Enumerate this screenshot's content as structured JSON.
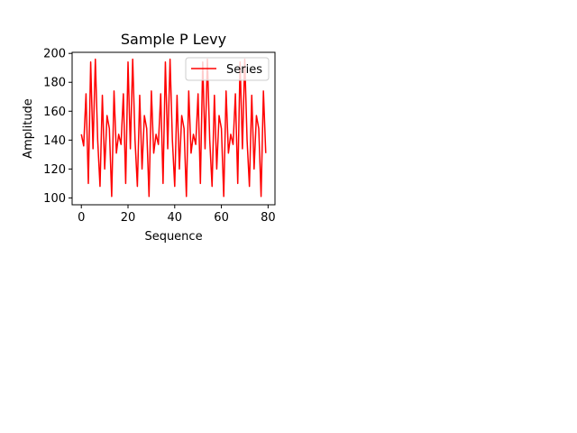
{
  "chart_data": {
    "type": "line",
    "title": "Sample P Levy",
    "xlabel": "Sequence",
    "ylabel": "Amplitude",
    "xlim": [
      -3.95,
      82.95
    ],
    "ylim": [
      95.25,
      200.75
    ],
    "x_ticks": [
      0,
      20,
      40,
      60,
      80
    ],
    "y_ticks": [
      100,
      120,
      140,
      160,
      180,
      200
    ],
    "legend_position": "upper right",
    "grid": false,
    "series": [
      {
        "name": "Series",
        "color": "#ff0000",
        "x": [
          0,
          1,
          2,
          3,
          4,
          5,
          6,
          7,
          8,
          9,
          10,
          11,
          12,
          13,
          14,
          15,
          16,
          17,
          18,
          19,
          20,
          21,
          22,
          23,
          24,
          25,
          26,
          27,
          28,
          29,
          30,
          31,
          32,
          33,
          34,
          35,
          36,
          37,
          38,
          39,
          40,
          41,
          42,
          43,
          44,
          45,
          46,
          47,
          48,
          49,
          50,
          51,
          52,
          53,
          54,
          55,
          56,
          57,
          58,
          59,
          60,
          61,
          62,
          63,
          64,
          65,
          66,
          67,
          68,
          69,
          70,
          71,
          72,
          73,
          74,
          75,
          76,
          77,
          78,
          79
        ],
        "values": [
          144,
          136,
          172,
          110,
          194,
          134,
          196,
          140,
          108,
          171,
          120,
          157,
          148,
          101,
          174,
          131,
          144,
          137,
          172,
          110,
          194,
          134,
          196,
          140,
          108,
          171,
          120,
          157,
          148,
          101,
          174,
          131,
          144,
          137,
          172,
          110,
          194,
          134,
          196,
          140,
          108,
          171,
          120,
          157,
          148,
          101,
          174,
          131,
          144,
          137,
          172,
          110,
          194,
          134,
          196,
          140,
          108,
          171,
          120,
          157,
          148,
          101,
          174,
          131,
          144,
          137,
          172,
          110,
          194,
          134,
          196,
          140,
          108,
          171,
          120,
          157,
          148,
          101,
          174,
          131
        ]
      }
    ]
  }
}
